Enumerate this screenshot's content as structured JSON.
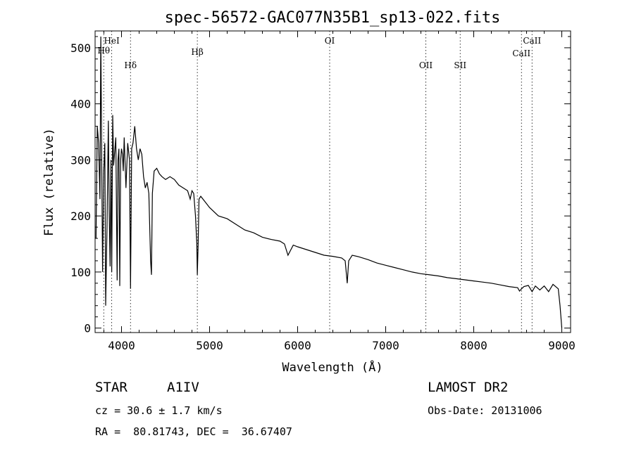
{
  "chart_data": {
    "type": "line",
    "title": "spec-56572-GAC077N35B1_sp13-022.fits",
    "xlabel": "Wavelength (Å)",
    "ylabel": "Flux (relative)",
    "xlim": [
      3700,
      9100
    ],
    "ylim": [
      -8,
      530
    ],
    "xticks": [
      4000,
      5000,
      6000,
      7000,
      8000,
      9000
    ],
    "yticks": [
      0,
      100,
      200,
      300,
      400,
      500
    ],
    "grid": false,
    "lines": [
      {
        "label": "Hθ",
        "x": 3798
      },
      {
        "label": "HeI",
        "x": 3889
      },
      {
        "label": "Hδ",
        "x": 4102
      },
      {
        "label": "Hβ",
        "x": 4861
      },
      {
        "label": "OI",
        "x": 6364
      },
      {
        "label": "OII",
        "x": 7456
      },
      {
        "label": "SII",
        "x": 7846
      },
      {
        "label": "CaII",
        "x": 8542
      },
      {
        "label": "CaII",
        "x": 8662
      }
    ],
    "series": [
      {
        "x": [
          3710,
          3725,
          3740,
          3755,
          3765,
          3775,
          3785,
          3798,
          3810,
          3820,
          3835,
          3850,
          3860,
          3870,
          3880,
          3889,
          3900,
          3910,
          3920,
          3935,
          3950,
          3960,
          3970,
          3980,
          3990,
          4000,
          4010,
          4020,
          4030,
          4050,
          4070,
          4090,
          4102,
          4115,
          4130,
          4150,
          4170,
          4190,
          4210,
          4230,
          4250,
          4270,
          4290,
          4310,
          4330,
          4340,
          4350,
          4370,
          4400,
          4430,
          4460,
          4500,
          4550,
          4600,
          4650,
          4700,
          4750,
          4780,
          4800,
          4820,
          4840,
          4855,
          4861,
          4870,
          4880,
          4900,
          4950,
          5000,
          5100,
          5200,
          5300,
          5400,
          5500,
          5600,
          5700,
          5800,
          5850,
          5890,
          5950,
          6000,
          6100,
          6200,
          6300,
          6400,
          6500,
          6540,
          6563,
          6580,
          6620,
          6700,
          6800,
          6900,
          7000,
          7100,
          7200,
          7300,
          7400,
          7500,
          7600,
          7700,
          7800,
          7900,
          8000,
          8100,
          8200,
          8300,
          8400,
          8498,
          8520,
          8542,
          8570,
          8620,
          8662,
          8700,
          8750,
          8800,
          8850,
          8900,
          8960,
          8980,
          9000
        ],
        "values": [
          160,
          360,
          330,
          230,
          520,
          300,
          100,
          280,
          330,
          40,
          180,
          370,
          210,
          110,
          300,
          100,
          380,
          290,
          310,
          340,
          85,
          300,
          320,
          75,
          300,
          320,
          310,
          280,
          340,
          250,
          330,
          300,
          70,
          320,
          330,
          360,
          320,
          300,
          320,
          310,
          270,
          250,
          260,
          240,
          120,
          95,
          240,
          280,
          285,
          275,
          270,
          265,
          270,
          265,
          255,
          250,
          245,
          230,
          245,
          240,
          200,
          150,
          95,
          150,
          230,
          235,
          225,
          215,
          200,
          195,
          185,
          175,
          170,
          162,
          158,
          155,
          150,
          130,
          148,
          145,
          140,
          135,
          130,
          128,
          125,
          120,
          80,
          120,
          130,
          127,
          122,
          116,
          112,
          108,
          104,
          100,
          97,
          95,
          93,
          90,
          88,
          86,
          84,
          82,
          80,
          77,
          74,
          72,
          66,
          70,
          74,
          76,
          65,
          75,
          68,
          75,
          65,
          78,
          70,
          40,
          0
        ]
      }
    ]
  },
  "info": {
    "class": "STAR",
    "subclass": "A1IV",
    "survey": "LAMOST DR2",
    "cz": "cz = 30.6 ± 1.7 km/s",
    "obsdate": "Obs-Date: 20131006",
    "radec": "RA =  80.81743, DEC =  36.67407"
  }
}
